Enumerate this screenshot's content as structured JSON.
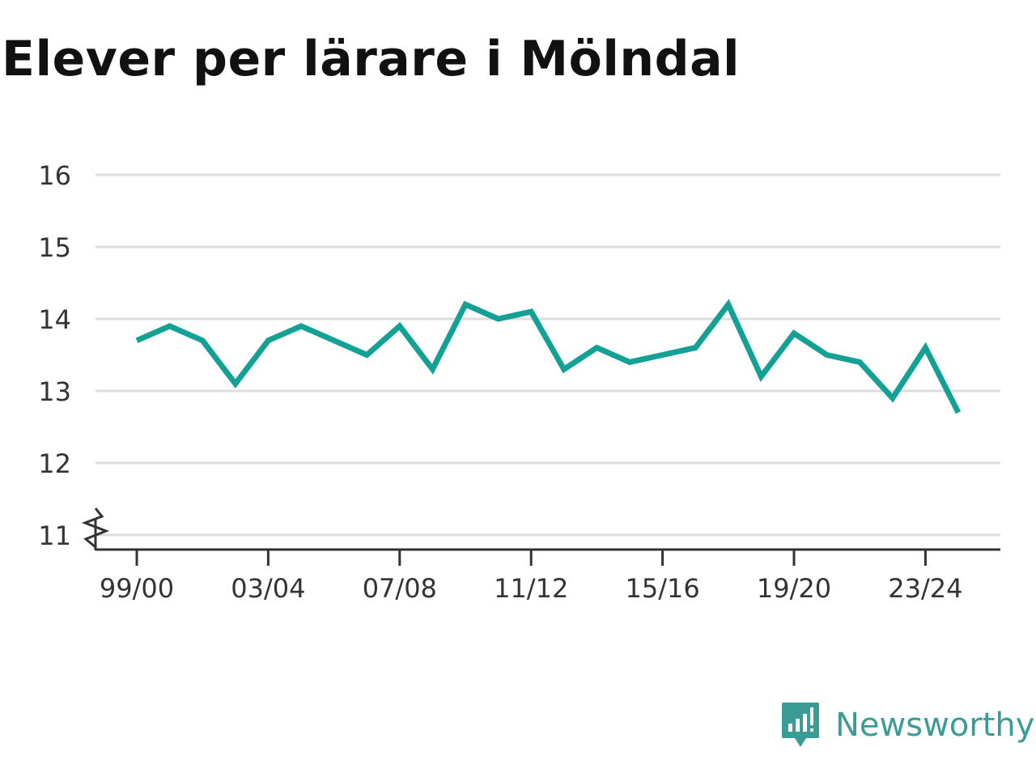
{
  "title": "Elever per lärare i Mölndal",
  "brand": {
    "name": "Newsworthy",
    "icon": "newsworthy-logo-icon",
    "color": "#3a9c94"
  },
  "colors": {
    "line": "#12a194",
    "grid": "#dddddd",
    "axis": "#333333"
  },
  "chart_data": {
    "type": "line",
    "title": "Elever per lärare i Mölndal",
    "xlabel": "",
    "ylabel": "",
    "x": [
      "99/00",
      "00/01",
      "01/02",
      "02/03",
      "03/04",
      "04/05",
      "05/06",
      "06/07",
      "07/08",
      "08/09",
      "09/10",
      "10/11",
      "11/12",
      "12/13",
      "13/14",
      "14/15",
      "15/16",
      "16/17",
      "17/18",
      "18/19",
      "19/20",
      "20/21",
      "21/22",
      "22/23",
      "23/24",
      "24/25"
    ],
    "x_tick_labels": [
      "99/00",
      "03/04",
      "07/08",
      "11/12",
      "15/16",
      "19/20",
      "23/24"
    ],
    "y_ticks": [
      11,
      12,
      13,
      14,
      15,
      16
    ],
    "ylim": [
      11,
      16
    ],
    "y_axis_break": true,
    "grid": true,
    "series": [
      {
        "values": [
          13.7,
          13.9,
          13.7,
          13.1,
          13.7,
          13.9,
          13.7,
          13.5,
          13.9,
          13.3,
          14.2,
          14.0,
          14.1,
          13.3,
          13.6,
          13.4,
          13.5,
          13.6,
          14.2,
          13.2,
          13.8,
          13.5,
          13.4,
          12.9,
          13.6,
          12.7
        ]
      }
    ]
  }
}
